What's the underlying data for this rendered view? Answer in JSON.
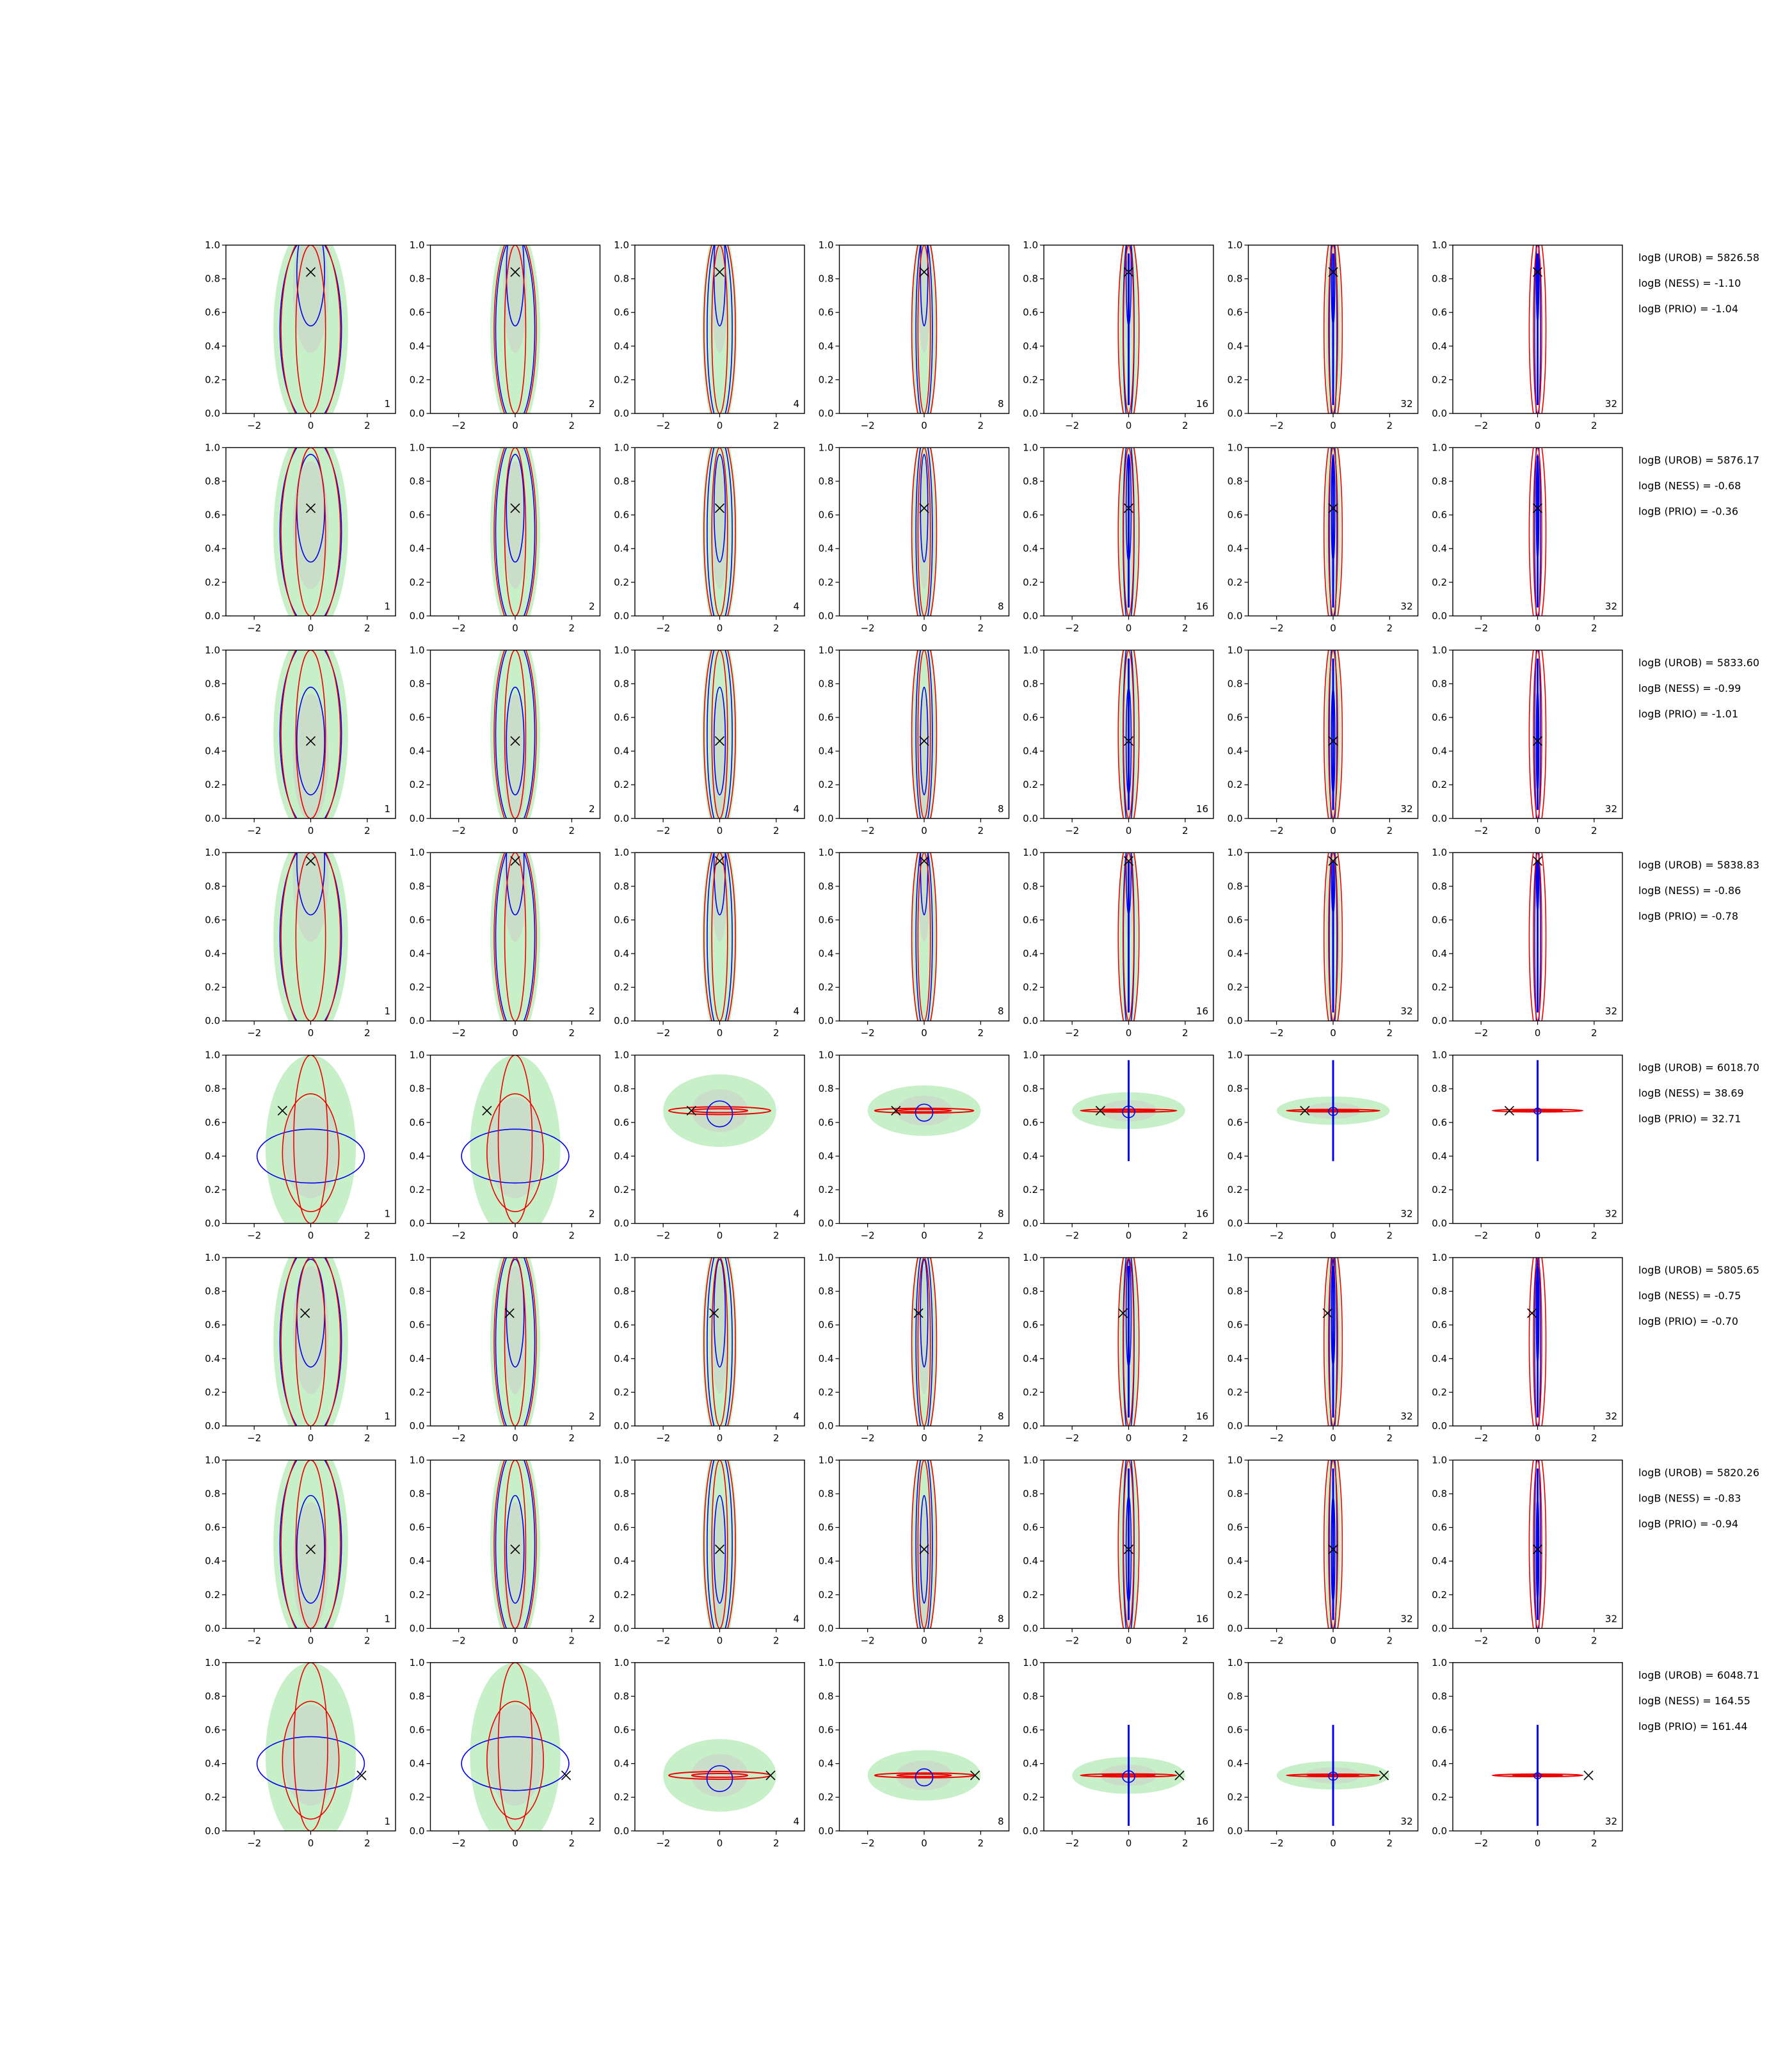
{
  "chart_data": {
    "type": "contour",
    "title": "",
    "xlim": [
      -3,
      3
    ],
    "ylim": [
      0,
      1
    ],
    "x_ticks": [
      "−2",
      "0",
      "2"
    ],
    "y_ticks": [
      "0.0",
      "0.2",
      "0.4",
      "0.6",
      "0.8",
      "1.0"
    ],
    "column_labels": [
      "1",
      "2",
      "4",
      "8",
      "16",
      "32",
      "32"
    ],
    "colors": {
      "fill": "#9be39b",
      "fill_inner": "#c9c9c9",
      "blue": "#0000ee",
      "red": "#ee0000",
      "marker": "#000000"
    },
    "rows": [
      {
        "truth": [
          0.0,
          0.84
        ],
        "kind": "vertical",
        "stats": [
          "logB (UROB) = 5826.58",
          "logB (NESS) = -1.10",
          "logB (PRIO) = -1.04"
        ]
      },
      {
        "truth": [
          0.0,
          0.64
        ],
        "kind": "vertical",
        "stats": [
          "logB (UROB) = 5876.17",
          "logB (NESS) = -0.68",
          "logB (PRIO) = -0.36"
        ]
      },
      {
        "truth": [
          0.0,
          0.46
        ],
        "kind": "vertical",
        "stats": [
          "logB (UROB) = 5833.60",
          "logB (NESS) = -0.99",
          "logB (PRIO) = -1.01"
        ]
      },
      {
        "truth": [
          0.0,
          0.95
        ],
        "kind": "vertical",
        "stats": [
          "logB (UROB) = 5838.83",
          "logB (NESS) = -0.86",
          "logB (PRIO) = -0.78"
        ]
      },
      {
        "truth": [
          -1.0,
          0.67
        ],
        "kind": "horizontal",
        "stats": [
          "logB (UROB) = 6018.70",
          "logB (NESS) = 38.69",
          "logB (PRIO) = 32.71"
        ]
      },
      {
        "truth": [
          -0.2,
          0.67
        ],
        "kind": "vertical",
        "stats": [
          "logB (UROB) = 5805.65",
          "logB (NESS) = -0.75",
          "logB (PRIO) = -0.70"
        ]
      },
      {
        "truth": [
          0.0,
          0.47
        ],
        "kind": "vertical",
        "stats": [
          "logB (UROB) = 5820.26",
          "logB (NESS) = -0.83",
          "logB (PRIO) = -0.94"
        ]
      },
      {
        "truth": [
          1.8,
          0.33
        ],
        "kind": "horizontal",
        "stats": [
          "logB (UROB) = 6048.71",
          "logB (NESS) = 164.55",
          "logB (PRIO) = 161.44"
        ]
      }
    ]
  }
}
